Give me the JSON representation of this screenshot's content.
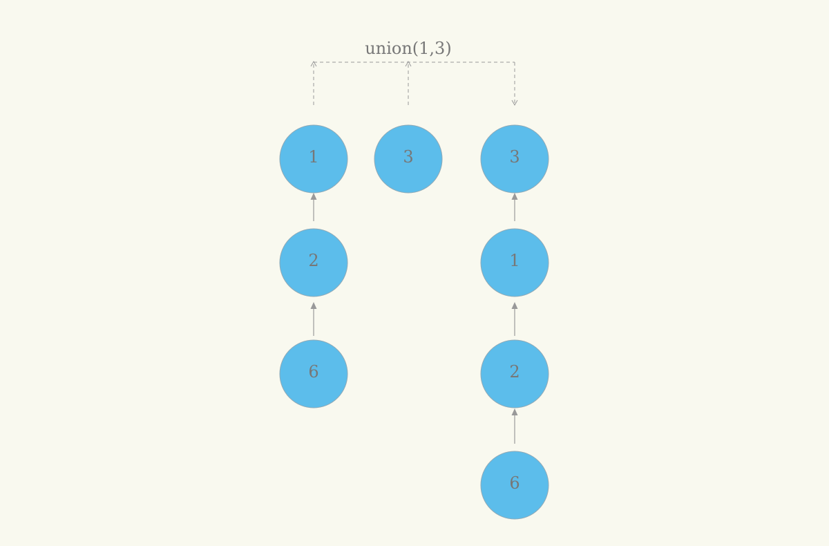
{
  "operation_label": "union(1,3)",
  "colors": {
    "background": "#f9f9ef",
    "node_fill": "#5cbdeb",
    "node_text": "#777777",
    "edge": "#999999"
  },
  "before": {
    "tree_1": [
      "1",
      "2",
      "6"
    ],
    "tree_3": [
      "3"
    ]
  },
  "after": {
    "tree_3": [
      "3",
      "1",
      "2",
      "6"
    ]
  }
}
